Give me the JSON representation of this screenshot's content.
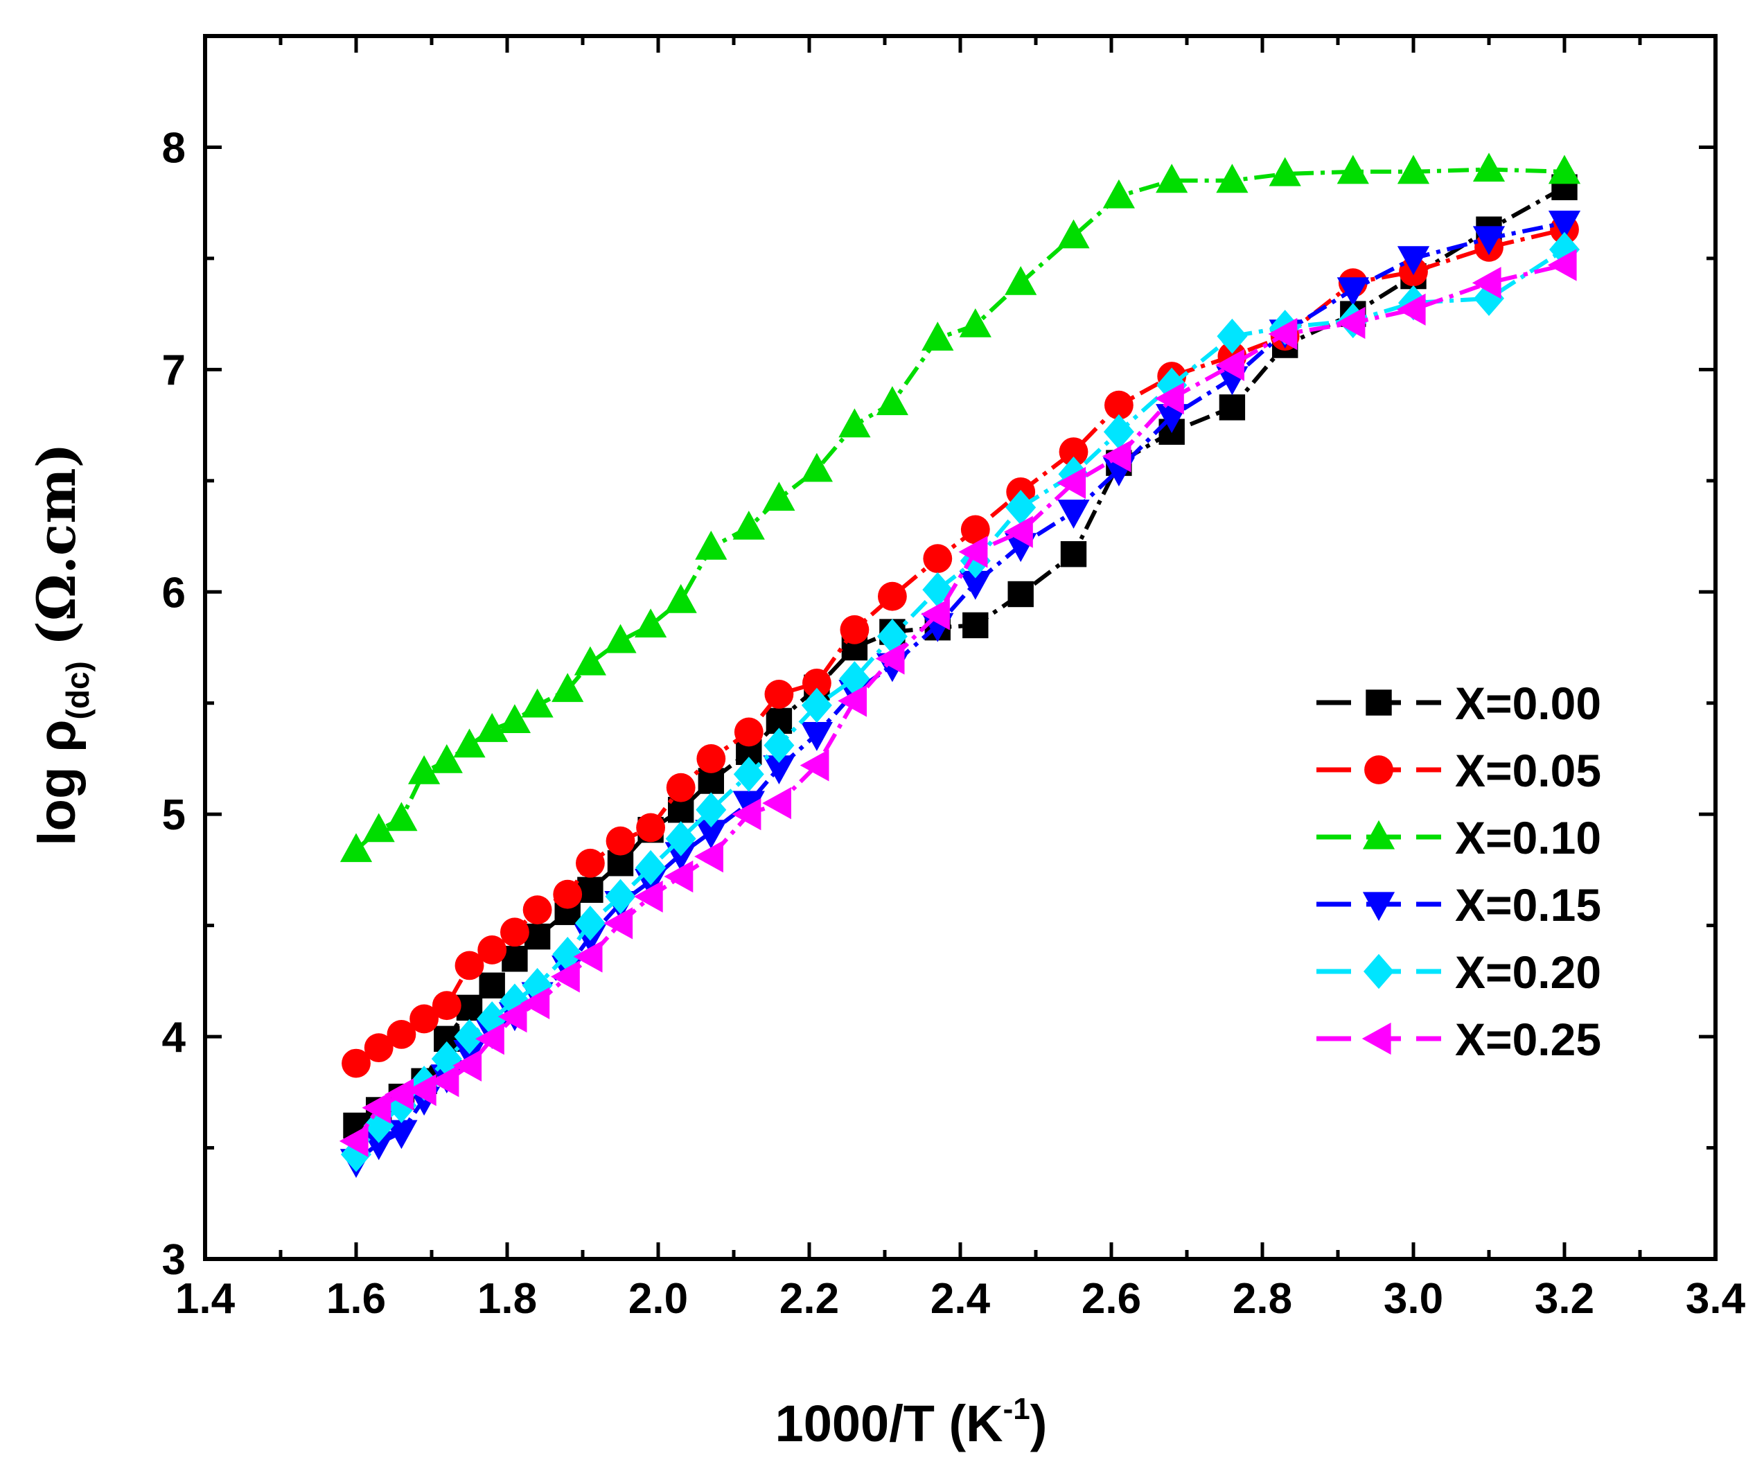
{
  "chart_data": {
    "type": "line",
    "xlabel_main": "1000/T (K",
    "xlabel_sup": "-1",
    "xlabel_end": ")",
    "ylabel_main": "log ρ",
    "ylabel_sub": "(dc)",
    "ylabel_unit": "(Ω.cm)",
    "xlim": [
      1.4,
      3.4
    ],
    "ylim": [
      3,
      8.5
    ],
    "xticks": [
      "1.4",
      "1.6",
      "1.8",
      "2.0",
      "2.2",
      "2.4",
      "2.6",
      "2.8",
      "3.0",
      "3.2",
      "3.4"
    ],
    "yticks": [
      "3",
      "4",
      "5",
      "6",
      "7",
      "8"
    ],
    "legend_position": "right-middle",
    "series": [
      {
        "name": "X=0.00",
        "color": "#000000",
        "marker": "square",
        "dash": "dash-dot",
        "x": [
          1.6,
          1.63,
          1.66,
          1.69,
          1.72,
          1.75,
          1.78,
          1.81,
          1.84,
          1.88,
          1.91,
          1.95,
          1.99,
          2.03,
          2.07,
          2.12,
          2.16,
          2.21,
          2.26,
          2.31,
          2.37,
          2.42,
          2.48,
          2.55,
          2.61,
          2.68,
          2.76,
          2.83,
          2.92,
          3.0,
          3.1,
          3.2
        ],
        "y": [
          3.6,
          3.67,
          3.73,
          3.8,
          3.99,
          4.13,
          4.23,
          4.35,
          4.45,
          4.56,
          4.66,
          4.78,
          4.93,
          5.02,
          5.15,
          5.28,
          5.42,
          5.57,
          5.75,
          5.82,
          5.84,
          5.85,
          5.99,
          6.17,
          6.58,
          6.72,
          6.83,
          7.11,
          7.25,
          7.42,
          7.63,
          7.82
        ]
      },
      {
        "name": "X=0.05",
        "color": "#ff0000",
        "marker": "circle",
        "dash": "dash-dot",
        "x": [
          1.6,
          1.63,
          1.66,
          1.69,
          1.72,
          1.75,
          1.78,
          1.81,
          1.84,
          1.88,
          1.91,
          1.95,
          1.99,
          2.03,
          2.07,
          2.12,
          2.16,
          2.21,
          2.26,
          2.31,
          2.37,
          2.42,
          2.48,
          2.55,
          2.61,
          2.68,
          2.76,
          2.83,
          2.92,
          3.0,
          3.1,
          3.2
        ],
        "y": [
          3.88,
          3.95,
          4.01,
          4.08,
          4.14,
          4.32,
          4.39,
          4.47,
          4.57,
          4.64,
          4.78,
          4.88,
          4.94,
          5.12,
          5.25,
          5.37,
          5.54,
          5.59,
          5.83,
          5.98,
          6.15,
          6.28,
          6.45,
          6.63,
          6.84,
          6.97,
          7.06,
          7.15,
          7.39,
          7.44,
          7.55,
          7.63
        ]
      },
      {
        "name": "X=0.10",
        "color": "#00dd00",
        "marker": "triangle-up",
        "dash": "dash-dot",
        "x": [
          1.6,
          1.63,
          1.66,
          1.69,
          1.72,
          1.75,
          1.78,
          1.81,
          1.84,
          1.88,
          1.91,
          1.95,
          1.99,
          2.03,
          2.07,
          2.12,
          2.16,
          2.21,
          2.26,
          2.31,
          2.37,
          2.42,
          2.48,
          2.55,
          2.61,
          2.68,
          2.76,
          2.83,
          2.92,
          3.0,
          3.1,
          3.2
        ],
        "y": [
          4.84,
          4.93,
          4.98,
          5.19,
          5.24,
          5.31,
          5.38,
          5.42,
          5.49,
          5.56,
          5.68,
          5.78,
          5.85,
          5.96,
          6.2,
          6.29,
          6.42,
          6.55,
          6.75,
          6.85,
          7.14,
          7.2,
          7.39,
          7.6,
          7.78,
          7.85,
          7.85,
          7.88,
          7.89,
          7.89,
          7.9,
          7.89
        ]
      },
      {
        "name": "X=0.15",
        "color": "#0000ff",
        "marker": "triangle-down",
        "dash": "dash-dot",
        "x": [
          1.6,
          1.63,
          1.66,
          1.69,
          1.72,
          1.75,
          1.78,
          1.81,
          1.84,
          1.88,
          1.91,
          1.95,
          1.99,
          2.03,
          2.07,
          2.12,
          2.16,
          2.21,
          2.26,
          2.31,
          2.37,
          2.42,
          2.48,
          2.55,
          2.61,
          2.68,
          2.76,
          2.83,
          2.92,
          3.0,
          3.1,
          3.2
        ],
        "y": [
          3.44,
          3.52,
          3.57,
          3.72,
          3.82,
          3.93,
          4.02,
          4.1,
          4.19,
          4.31,
          4.45,
          4.6,
          4.7,
          4.82,
          4.92,
          5.05,
          5.21,
          5.36,
          5.55,
          5.67,
          5.85,
          6.04,
          6.21,
          6.36,
          6.55,
          6.79,
          6.96,
          7.17,
          7.36,
          7.5,
          7.59,
          7.66
        ]
      },
      {
        "name": "X=0.20",
        "color": "#00e5ff",
        "marker": "diamond",
        "dash": "dash-dot",
        "x": [
          1.6,
          1.63,
          1.66,
          1.69,
          1.72,
          1.75,
          1.78,
          1.81,
          1.84,
          1.88,
          1.91,
          1.95,
          1.99,
          2.03,
          2.07,
          2.12,
          2.16,
          2.21,
          2.26,
          2.31,
          2.37,
          2.42,
          2.48,
          2.55,
          2.61,
          2.68,
          2.76,
          2.83,
          2.92,
          3.0,
          3.1,
          3.2
        ],
        "y": [
          3.47,
          3.6,
          3.69,
          3.79,
          3.9,
          4.0,
          4.08,
          4.16,
          4.23,
          4.37,
          4.51,
          4.63,
          4.76,
          4.89,
          5.02,
          5.18,
          5.31,
          5.49,
          5.61,
          5.8,
          6.01,
          6.14,
          6.38,
          6.53,
          6.72,
          6.93,
          7.15,
          7.19,
          7.22,
          7.3,
          7.32,
          7.54
        ]
      },
      {
        "name": "X=0.25",
        "color": "#ff00ff",
        "marker": "triangle-left",
        "dash": "dash-dot",
        "x": [
          1.6,
          1.63,
          1.66,
          1.69,
          1.72,
          1.75,
          1.78,
          1.81,
          1.84,
          1.88,
          1.91,
          1.95,
          1.99,
          2.03,
          2.07,
          2.12,
          2.16,
          2.21,
          2.26,
          2.31,
          2.37,
          2.42,
          2.48,
          2.55,
          2.61,
          2.68,
          2.76,
          2.83,
          2.92,
          3.0,
          3.1,
          3.2
        ],
        "y": [
          3.53,
          3.68,
          3.74,
          3.76,
          3.8,
          3.87,
          3.99,
          4.09,
          4.15,
          4.27,
          4.36,
          4.51,
          4.63,
          4.72,
          4.81,
          5.0,
          5.05,
          5.22,
          5.51,
          5.7,
          5.9,
          6.18,
          6.27,
          6.49,
          6.61,
          6.87,
          7.02,
          7.16,
          7.21,
          7.27,
          7.39,
          7.47
        ]
      }
    ]
  }
}
